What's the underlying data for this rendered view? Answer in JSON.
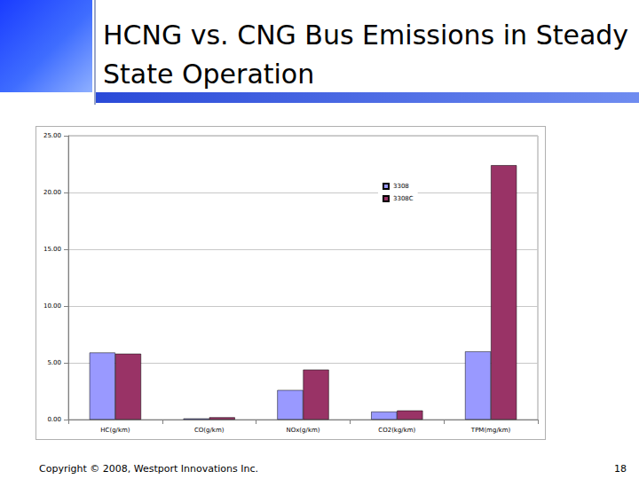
{
  "slide": {
    "title": "HCNG vs. CNG Bus Emissions in Steady State Operation",
    "footer": "Copyright © 2008, Westport Innovations Inc.",
    "page": "18"
  },
  "chart_data": {
    "type": "bar",
    "categories": [
      "HC(g/km)",
      "CO(g/km)",
      "NOx(g/km)",
      "CO2(kg/km)",
      "TPM(mg/km)"
    ],
    "series": [
      {
        "name": "3308",
        "color": "#9999ff",
        "values": [
          5.9,
          0.1,
          2.6,
          0.7,
          6.0
        ]
      },
      {
        "name": "3308C",
        "color": "#993366",
        "values": [
          5.8,
          0.2,
          4.4,
          0.8,
          22.4
        ]
      }
    ],
    "ylim": [
      0,
      25
    ],
    "yticks": [
      {
        "value": 0,
        "label": "0.00"
      },
      {
        "value": 5,
        "label": "5.00"
      },
      {
        "value": 10,
        "label": "10.00"
      },
      {
        "value": 15,
        "label": "15.00"
      },
      {
        "value": 20,
        "label": "20.00"
      },
      {
        "value": 25,
        "label": "25.00"
      }
    ],
    "grid": true,
    "legend": "upper right"
  }
}
